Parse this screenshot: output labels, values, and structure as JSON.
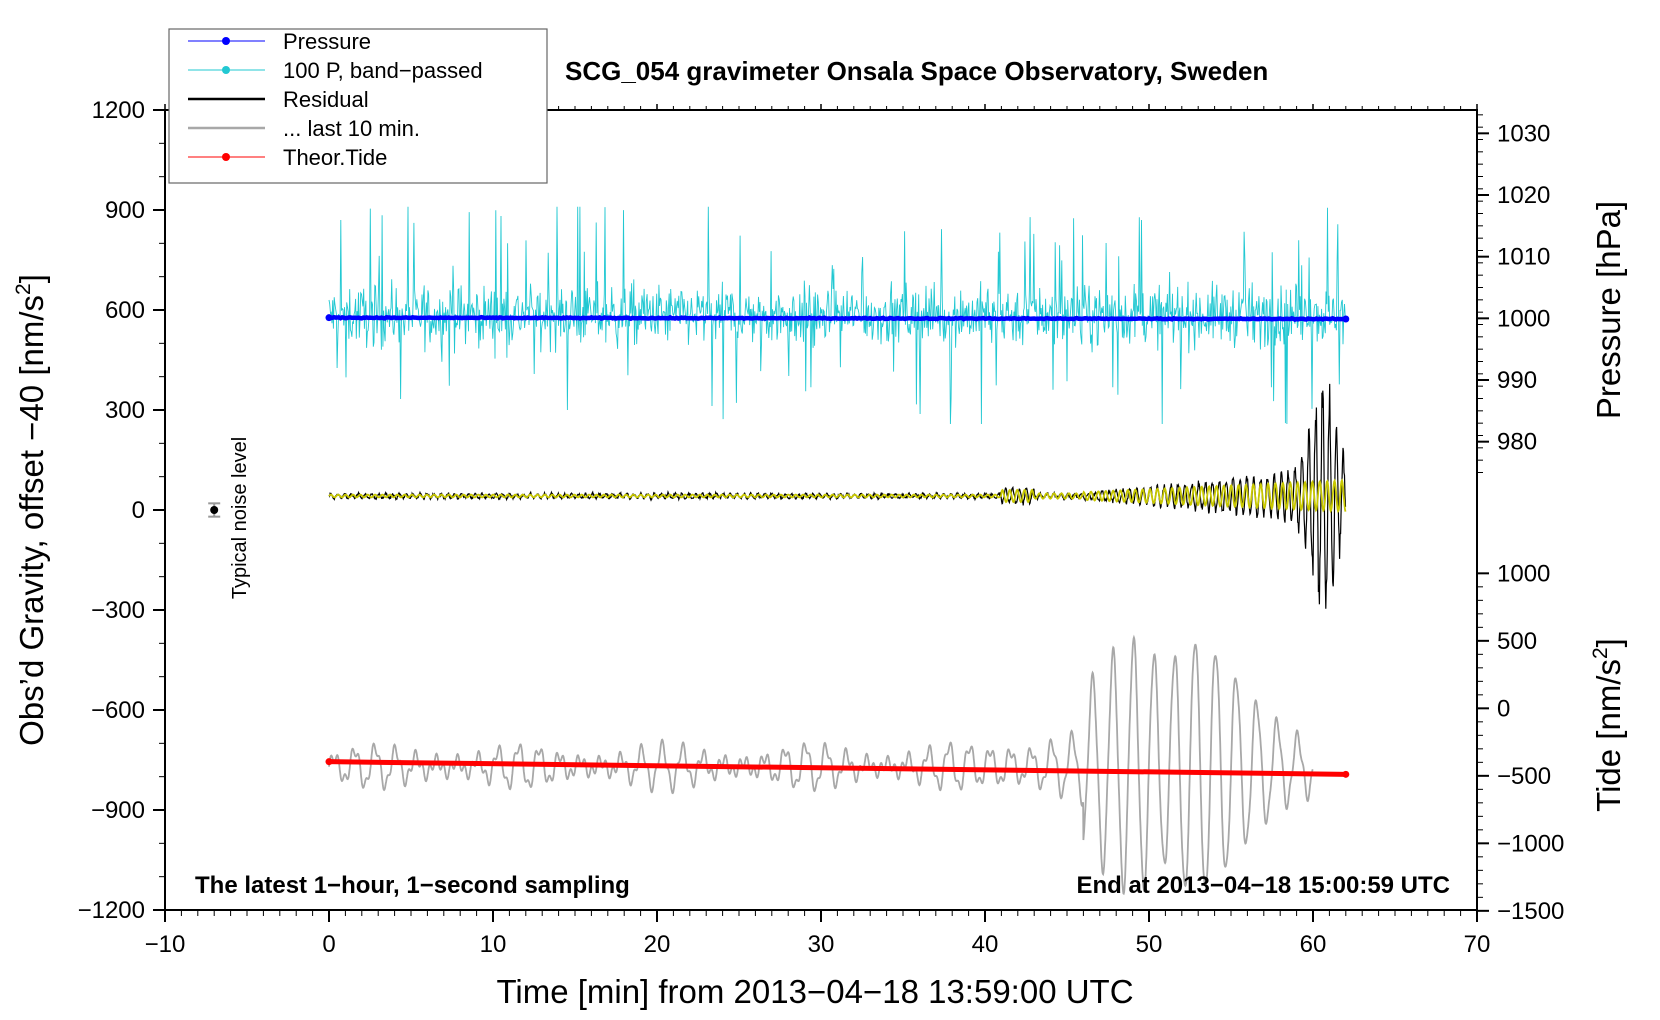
{
  "chart_data": {
    "type": "line",
    "title": "SCG_054 gravimeter Onsala Space Observatory, Sweden",
    "xlabel": "Time [min] from 2013−04−18 13:59:00 UTC",
    "ylabel": "Obs’d Gravity, offset −40 [nm/s²]",
    "ylabel_parts": {
      "main": "Obs’d Gravity, offset −40 [nm/s",
      "sup": "2",
      "end": "]"
    },
    "xlim": [
      -10,
      70
    ],
    "ylim": [
      -1200,
      1200
    ],
    "x_ticks": [
      -10,
      0,
      10,
      20,
      30,
      40,
      50,
      60,
      70
    ],
    "x_tick_labels": [
      "−10",
      "0",
      "10",
      "20",
      "30",
      "40",
      "50",
      "60",
      "70"
    ],
    "y_ticks": [
      1200,
      900,
      600,
      300,
      0,
      -300,
      -600,
      -900,
      -1200
    ],
    "y_tick_labels": [
      "1200",
      "900",
      "600",
      "300",
      "0",
      "−300",
      "−600",
      "−900",
      "−1200"
    ],
    "right_axis_pressure": {
      "label": "Pressure [hPa]",
      "ticks": [
        1030,
        1020,
        1010,
        1000,
        990,
        980
      ],
      "tick_labels": [
        "1030",
        "1020",
        "1010",
        "1000",
        "990",
        "980"
      ],
      "left_value_at_1000hPa": 575,
      "left_units_per_hPa": 18.5
    },
    "right_axis_tide": {
      "label_parts": {
        "main": "Tide [nm/s",
        "sup": "2",
        "end": "]"
      },
      "ticks": [
        1000,
        500,
        0,
        -500,
        -1000,
        -1500
      ],
      "tick_labels": [
        "1000",
        "500",
        "0",
        "−500",
        "−1000",
        "−1500"
      ],
      "left_value_at_0": -595,
      "left_units_per_unit": 0.405
    },
    "legend": [
      {
        "label": "Pressure",
        "color": "#0000ff",
        "marker": true
      },
      {
        "label": "100 P, band−passed",
        "color": "#22c8d2",
        "marker": true
      },
      {
        "label": "Residual",
        "color": "#000000",
        "marker": false
      },
      {
        "label": "... last 10 min.",
        "color": "#a8a8a8",
        "marker": false
      },
      {
        "label": "Theor.Tide",
        "color": "#ff0000",
        "marker": true
      }
    ],
    "legend_placement": "top-left",
    "annotations": {
      "bottom_left": "The latest 1−hour, 1−second sampling",
      "bottom_right": "End at 2013−04−18 15:00:59 UTC",
      "noise_label": "Typical noise level"
    },
    "noise_level": {
      "x": -7,
      "y": 0,
      "err": 20
    },
    "series": [
      {
        "name": "Pressure",
        "color": "#0000ff",
        "x_range": [
          0,
          62
        ],
        "y_start": 577,
        "y_end": 573
      },
      {
        "name": "100 P, band−passed",
        "color": "#22c8d2",
        "x_range": [
          0,
          62
        ],
        "y_center": 585,
        "y_min": 258,
        "y_max": 910
      },
      {
        "name": "Residual",
        "color": "#000000",
        "x_range": [
          0,
          62
        ],
        "y_center": 42,
        "y_min": -415,
        "y_max": 445
      },
      {
        "name": "Residual (filtered)",
        "color": "#c8c800",
        "x_range": [
          0,
          62
        ],
        "y_center": 42,
        "y_min": -5,
        "y_max": 95
      },
      {
        "name": "... last 10 min.",
        "color": "#a8a8a8",
        "x_range": [
          0,
          60
        ],
        "y_center": -770,
        "y_min": -1185,
        "y_max": -265
      },
      {
        "name": "Theor.Tide",
        "color": "#ff0000",
        "x_range": [
          0,
          62
        ],
        "y_start": -755,
        "y_end": -793
      }
    ]
  }
}
